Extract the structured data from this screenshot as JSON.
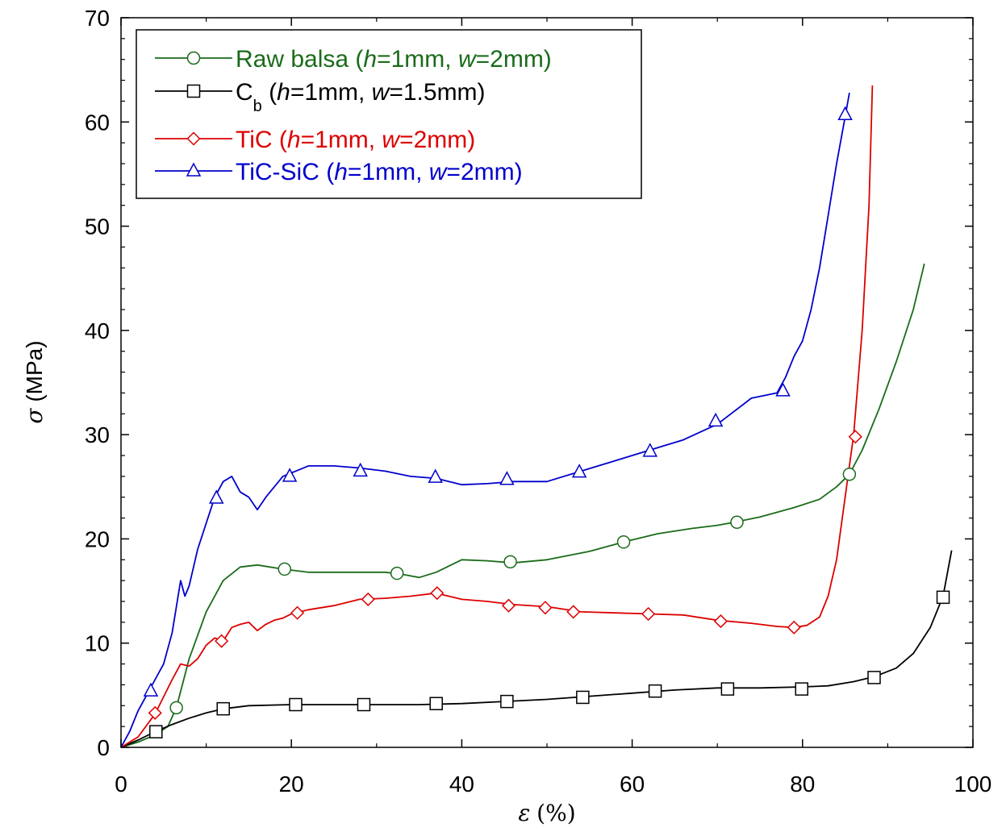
{
  "chart_data": {
    "type": "line",
    "xlabel": {
      "symbol": "ε",
      "unit": "(%)"
    },
    "ylabel": {
      "symbol": "σ",
      "unit": "(MPa)"
    },
    "xlim": [
      0,
      100
    ],
    "ylim": [
      0,
      70
    ],
    "x_ticks": [
      "0",
      "20",
      "40",
      "60",
      "80",
      "100"
    ],
    "y_ticks": [
      "0",
      "10",
      "20",
      "30",
      "40",
      "50",
      "60",
      "70"
    ],
    "grid": false,
    "legend_placement": "top-left",
    "series": [
      {
        "name": "Raw balsa (h=1mm, w=2mm)",
        "legend": {
          "prefix": "Raw balsa (",
          "h": "h",
          "hval": "=1mm, ",
          "w": "w",
          "wval": "=2mm)"
        },
        "color": "#1a6b1a",
        "marker": "circle",
        "x": [
          0,
          2,
          4,
          5.5,
          6.5,
          8,
          10,
          12,
          14,
          16,
          19,
          22,
          25,
          28,
          31,
          33,
          35,
          37,
          40,
          43,
          46,
          50,
          55,
          59,
          63,
          67,
          70,
          72,
          75,
          79,
          82,
          84,
          85.5,
          87,
          89,
          91,
          93,
          94.3
        ],
        "y": [
          0,
          0.5,
          1.2,
          2.0,
          3.8,
          8.5,
          13.0,
          16.0,
          17.3,
          17.5,
          17.1,
          16.8,
          16.8,
          16.8,
          16.8,
          16.6,
          16.3,
          16.8,
          18.0,
          17.9,
          17.7,
          18.0,
          18.8,
          19.7,
          20.5,
          21.0,
          21.3,
          21.6,
          22.1,
          23.0,
          23.8,
          25.0,
          26.2,
          28.5,
          32.5,
          37.0,
          42.0,
          46.4
        ],
        "marker_x": [
          6.5,
          19.2,
          32.4,
          45.7,
          59.0,
          72.3,
          85.5
        ],
        "marker_y": [
          3.8,
          17.1,
          16.7,
          17.8,
          19.7,
          21.6,
          26.2
        ]
      },
      {
        "name": "Cb (h=1mm, w=1.5mm)",
        "legend": {
          "prefix": "C",
          "sub": "b",
          "mid": " (",
          "h": "h",
          "hval": "=1mm, ",
          "w": "w",
          "wval": "=1.5mm)"
        },
        "color": "#000000",
        "marker": "square",
        "x": [
          0,
          2,
          4,
          6,
          8,
          10,
          12,
          15,
          20,
          25,
          30,
          35,
          40,
          45,
          50,
          55,
          60,
          65,
          70,
          75,
          80,
          83,
          86,
          88.5,
          91,
          93,
          95,
          96.5,
          97.5
        ],
        "y": [
          0,
          0.7,
          1.5,
          2.2,
          2.8,
          3.3,
          3.7,
          4.0,
          4.1,
          4.1,
          4.1,
          4.1,
          4.2,
          4.4,
          4.6,
          4.9,
          5.2,
          5.5,
          5.7,
          5.7,
          5.8,
          5.9,
          6.3,
          6.8,
          7.6,
          9.0,
          11.5,
          14.5,
          18.9
        ],
        "marker_x": [
          4.1,
          12.0,
          20.5,
          28.5,
          37.0,
          45.3,
          54.2,
          62.7,
          71.2,
          79.9,
          88.4,
          96.5
        ],
        "marker_y": [
          1.5,
          3.7,
          4.1,
          4.1,
          4.2,
          4.4,
          4.8,
          5.4,
          5.6,
          5.6,
          6.7,
          14.4
        ]
      },
      {
        "name": "TiC (h=1mm, w=2mm)",
        "legend": {
          "prefix": "TiC (",
          "h": "h",
          "hval": "=1mm, ",
          "w": "w",
          "wval": "=2mm)"
        },
        "color": "#dd0000",
        "marker": "diamond",
        "x": [
          0,
          2,
          4,
          6,
          7,
          8,
          9,
          10,
          11,
          12,
          13,
          14,
          15,
          16,
          17,
          18,
          19,
          20,
          22,
          25,
          28,
          31,
          34,
          37,
          40,
          43,
          46,
          50,
          54,
          58,
          62,
          66,
          70,
          74,
          77,
          79,
          80.5,
          82,
          83,
          84,
          85,
          86,
          87,
          87.8,
          88.2
        ],
        "y": [
          0,
          1.0,
          3.2,
          6.5,
          8.0,
          7.8,
          8.5,
          9.8,
          10.5,
          10.2,
          11.5,
          11.8,
          12.0,
          11.2,
          11.8,
          12.2,
          12.4,
          12.8,
          13.2,
          13.6,
          14.2,
          14.3,
          14.5,
          14.8,
          14.2,
          14.0,
          13.7,
          13.5,
          13.0,
          12.9,
          12.8,
          12.7,
          12.2,
          11.9,
          11.6,
          11.5,
          11.7,
          12.5,
          14.5,
          18.0,
          24.0,
          30.0,
          40.0,
          52.0,
          63.5
        ],
        "marker_x": [
          4.0,
          11.8,
          20.7,
          29.0,
          37.1,
          45.5,
          49.8,
          53.1,
          61.9,
          70.4,
          79.0,
          86.2
        ],
        "marker_y": [
          3.3,
          10.2,
          12.9,
          14.2,
          14.8,
          13.6,
          13.4,
          13.0,
          12.8,
          12.1,
          11.5,
          29.8
        ]
      },
      {
        "name": "TiC-SiC (h=1mm, w=2mm)",
        "legend": {
          "prefix": "TiC-SiC  (",
          "h": "h",
          "hval": "=1mm, ",
          "w": "w",
          "wval": "=2mm)"
        },
        "color": "#0000cc",
        "marker": "triangle",
        "x": [
          0,
          1,
          2,
          3,
          4,
          5,
          6,
          7,
          7.5,
          8,
          9,
          10,
          11,
          12,
          13,
          14,
          15,
          16,
          17,
          19,
          22,
          25,
          28,
          31,
          34,
          37,
          40,
          43,
          46,
          50,
          54,
          58,
          62,
          66,
          70,
          74,
          77,
          78,
          79,
          80,
          81,
          82,
          83,
          84,
          85,
          85.5
        ],
        "y": [
          0,
          1.5,
          3.5,
          5.0,
          6.5,
          8.0,
          11.0,
          16.0,
          14.5,
          15.5,
          19.0,
          21.5,
          24.0,
          25.5,
          26.0,
          24.5,
          24.0,
          22.8,
          24.0,
          26.0,
          27.0,
          27.0,
          26.8,
          26.5,
          26.0,
          25.8,
          25.2,
          25.3,
          25.5,
          25.5,
          26.5,
          27.5,
          28.5,
          29.5,
          31.0,
          33.5,
          34.0,
          35.5,
          37.5,
          39.0,
          42.0,
          46.0,
          51.0,
          56.0,
          60.5,
          62.8
        ],
        "marker_x": [
          3.5,
          11.2,
          19.8,
          28.1,
          36.9,
          45.3,
          53.8,
          62.1,
          69.8,
          77.7,
          85.0
        ],
        "marker_y": [
          5.4,
          23.9,
          26.0,
          26.5,
          25.9,
          25.7,
          26.4,
          28.4,
          31.3,
          34.2,
          60.7
        ]
      }
    ]
  }
}
